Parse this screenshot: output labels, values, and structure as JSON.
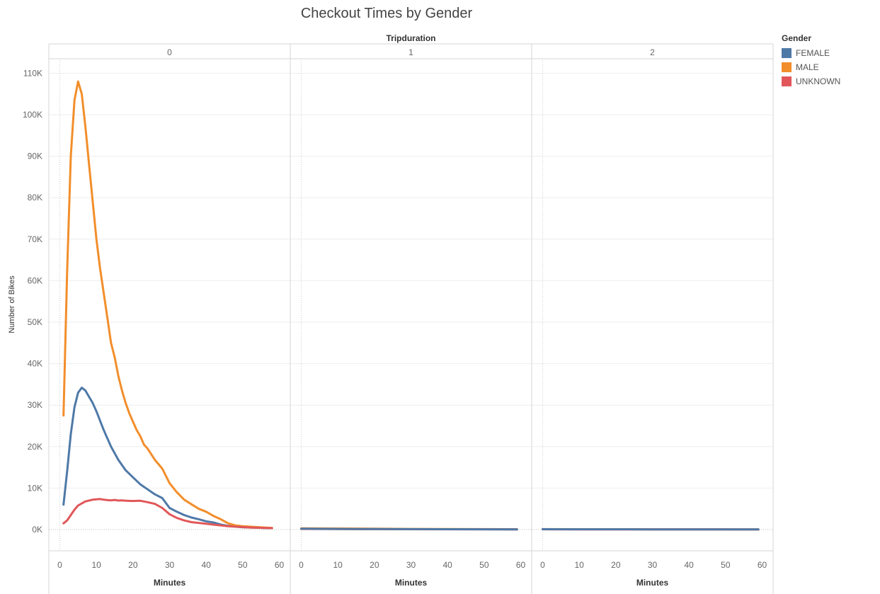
{
  "chart_data": {
    "type": "line",
    "title": "Checkout Times by Gender",
    "column_header": "Tripduration",
    "ylabel": "Number of Bikes",
    "xlabel": "Minutes",
    "ylim": [
      0,
      110000
    ],
    "y_ticks": [
      "0K",
      "10K",
      "20K",
      "30K",
      "40K",
      "50K",
      "60K",
      "70K",
      "80K",
      "90K",
      "100K",
      "110K"
    ],
    "y_tick_values": [
      0,
      10000,
      20000,
      30000,
      40000,
      50000,
      60000,
      70000,
      80000,
      90000,
      100000,
      110000
    ],
    "x_ticks": [
      "0",
      "10",
      "20",
      "30",
      "40",
      "50",
      "60"
    ],
    "x_tick_values": [
      0,
      10,
      20,
      30,
      40,
      50,
      60
    ],
    "xlim": [
      -3,
      63
    ],
    "legend": {
      "title": "Gender",
      "position": "right"
    },
    "panels": [
      {
        "label": "0",
        "series": [
          {
            "name": "FEMALE",
            "color": "#4e79a7",
            "x": [
              1,
              2,
              3,
              4,
              5,
              6,
              7,
              8,
              9,
              10,
              12,
              14,
              16,
              18,
              20,
              22,
              24,
              26,
              28,
              30,
              32,
              34,
              36,
              38,
              40,
              42,
              44,
              46,
              48,
              50,
              52,
              54,
              56,
              58
            ],
            "y": [
              6000,
              14000,
              23000,
              29500,
              33000,
              34200,
              33500,
              32000,
              30500,
              28500,
              24000,
              20000,
              16800,
              14300,
              12600,
              10900,
              9700,
              8500,
              7600,
              5200,
              4300,
              3500,
              2900,
              2500,
              2000,
              1700,
              1200,
              900,
              700,
              550,
              500,
              450,
              400,
              350
            ]
          },
          {
            "name": "MALE",
            "color": "#f28e2b",
            "x": [
              1,
              2,
              3,
              4,
              5,
              6,
              7,
              8,
              9,
              10,
              11,
              12,
              13,
              14,
              15,
              16,
              17,
              18,
              19,
              20,
              21,
              22,
              23,
              24,
              26,
              28,
              30,
              32,
              34,
              36,
              38,
              40,
              42,
              44,
              46,
              48,
              50,
              52,
              54,
              56,
              58
            ],
            "y": [
              27500,
              62000,
              90000,
              103500,
              108000,
              105000,
              97000,
              88000,
              79000,
              70000,
              63000,
              57000,
              51000,
              45000,
              41500,
              37000,
              33500,
              30500,
              28000,
              26000,
              24000,
              22500,
              20500,
              19500,
              16800,
              14700,
              11200,
              9000,
              7200,
              6100,
              5000,
              4300,
              3300,
              2500,
              1500,
              1000,
              800,
              700,
              600,
              500,
              400
            ]
          },
          {
            "name": "UNKNOWN",
            "color": "#e15759",
            "x": [
              1,
              2,
              3,
              4,
              5,
              6,
              7,
              8,
              9,
              10,
              11,
              12,
              13,
              14,
              15,
              16,
              17,
              18,
              20,
              22,
              24,
              26,
              28,
              30,
              32,
              34,
              36,
              38,
              40,
              42,
              44,
              46,
              48,
              50,
              52,
              54,
              56,
              58
            ],
            "y": [
              1500,
              2200,
              3500,
              4800,
              5800,
              6300,
              6800,
              7000,
              7200,
              7300,
              7350,
              7200,
              7100,
              7050,
              7150,
              7000,
              7050,
              6950,
              6900,
              6950,
              6600,
              6200,
              5200,
              3700,
              2800,
              2200,
              1800,
              1600,
              1400,
              1200,
              1000,
              800,
              700,
              600,
              500,
              450,
              400,
              350
            ]
          }
        ]
      },
      {
        "label": "1",
        "series": [
          {
            "name": "MALE",
            "color": "#f28e2b",
            "x": [
              0,
              10,
              20,
              30,
              40,
              50,
              59
            ],
            "y": [
              300,
              250,
              200,
              150,
              120,
              100,
              80
            ]
          },
          {
            "name": "UNKNOWN",
            "color": "#e15759",
            "x": [
              0,
              10,
              20,
              30,
              40,
              50,
              59
            ],
            "y": [
              150,
              120,
              100,
              80,
              70,
              60,
              50
            ]
          },
          {
            "name": "FEMALE",
            "color": "#4e79a7",
            "x": [
              0,
              10,
              20,
              30,
              40,
              50,
              59
            ],
            "y": [
              200,
              150,
              120,
              100,
              80,
              60,
              50
            ]
          }
        ]
      },
      {
        "label": "2",
        "series": [
          {
            "name": "MALE",
            "color": "#f28e2b",
            "x": [
              0,
              10,
              20,
              30,
              40,
              50,
              59
            ],
            "y": [
              100,
              90,
              80,
              70,
              60,
              50,
              40
            ]
          },
          {
            "name": "UNKNOWN",
            "color": "#e15759",
            "x": [
              0,
              10,
              20,
              30,
              40,
              50,
              59
            ],
            "y": [
              60,
              50,
              45,
              40,
              35,
              30,
              25
            ]
          },
          {
            "name": "FEMALE",
            "color": "#4e79a7",
            "x": [
              0,
              10,
              20,
              30,
              40,
              50,
              59
            ],
            "y": [
              80,
              70,
              60,
              50,
              40,
              35,
              30
            ]
          }
        ]
      }
    ],
    "legend_items": [
      {
        "name": "FEMALE",
        "color": "#4e79a7"
      },
      {
        "name": "MALE",
        "color": "#f28e2b"
      },
      {
        "name": "UNKNOWN",
        "color": "#e15759"
      }
    ]
  }
}
